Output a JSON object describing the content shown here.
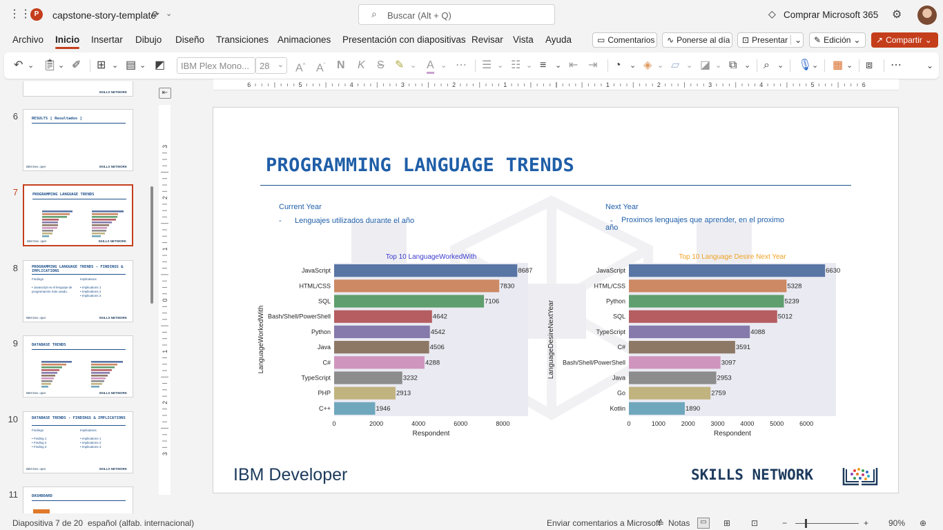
{
  "app": {
    "title": "capstone-story-template",
    "search_placeholder": "Buscar (Alt + Q)",
    "buy_label": "Comprar Microsoft 365"
  },
  "ribbon": {
    "tabs": [
      "Archivo",
      "Inicio",
      "Insertar",
      "Dibujo",
      "Diseño",
      "Transiciones",
      "Animaciones",
      "Presentación con diapositivas",
      "Revisar",
      "Vista",
      "Ayuda"
    ],
    "active_tab": "Inicio",
    "comments": "Comentarios",
    "catch_up": "Ponerse al día",
    "present": "Presentar",
    "edit_mode": "Edición",
    "share": "Compartir",
    "font_name": "IBM Plex Mono...",
    "font_size": "28"
  },
  "thumbnails": [
    {
      "num": "6",
      "title": "RESULTS [ Resultados ]"
    },
    {
      "num": "7",
      "title": "PROGRAMMING LANGUAGE TRENDS"
    },
    {
      "num": "8",
      "title": "PROGRAMMING LANGUAGE TRENDS - FINDINGS & IMPLICATIONS",
      "c1": "Findings",
      "c2": "Implications",
      "c1b": "• Javascript es el lenguaje de programación más usado.",
      "c2b": "• Implications 1\n• Implications 2\n• Implications 3"
    },
    {
      "num": "9",
      "title": "DATABASE TRENDS"
    },
    {
      "num": "10",
      "title": "DATABASE TRENDS - FINDINGS & IMPLICATIONS",
      "c1": "Findings",
      "c2": "Implications",
      "c1b": "• Finding 1\n• Finding 2\n• Finding 3",
      "c2b": "• Implications 1\n• Implications 2\n• Implications 3"
    },
    {
      "num": "11",
      "title": "DASHBOARD"
    }
  ],
  "thumb_footer": {
    "left": "IBM Dev. oper",
    "right": "SKILLS NETWORK"
  },
  "slide": {
    "title": "PROGRAMMING LANGUAGE TRENDS",
    "left_heading": "Current Year",
    "left_bullet": "Lenguajes utilizados durante el año",
    "right_heading": "Next Year",
    "right_bullet": "Proximos lenguajes que aprender, en el proximo año",
    "footer_left": "IBM Developer",
    "footer_right": "SKILLS NETWORK"
  },
  "chart_data": [
    {
      "type": "bar",
      "orientation": "horizontal",
      "title": "Top 10 LanguageWorkedWith",
      "title_color": "#3b3bd1",
      "xlabel": "Respondent",
      "ylabel": "LanguageWorkedWith",
      "categories": [
        "JavaScript",
        "HTML/CSS",
        "SQL",
        "Bash/Shell/PowerShell",
        "Python",
        "Java",
        "C#",
        "TypeScript",
        "PHP",
        "C++"
      ],
      "values": [
        8687,
        7830,
        7106,
        4642,
        4542,
        4506,
        4288,
        3232,
        2913,
        1946
      ],
      "xticks": [
        0,
        2000,
        4000,
        6000,
        8000
      ],
      "xlim": [
        0,
        9200
      ],
      "grid": false
    },
    {
      "type": "bar",
      "orientation": "horizontal",
      "title": "Top 10 Language Desire Next Year",
      "title_color": "#f0a020",
      "xlabel": "Respondent",
      "ylabel": "LanguageDesireNextYear",
      "categories": [
        "JavaScript",
        "HTML/CSS",
        "Python",
        "SQL",
        "TypeScript",
        "C#",
        "Bash/Shell/PowerShell",
        "Java",
        "Go",
        "Kotlin"
      ],
      "values": [
        6630,
        5328,
        5239,
        5012,
        4088,
        3591,
        3097,
        2953,
        2759,
        1890
      ],
      "xticks": [
        0,
        1000,
        2000,
        3000,
        4000,
        5000,
        6000
      ],
      "xlim": [
        0,
        7000
      ],
      "grid": false
    }
  ],
  "bar_colors": [
    "#5975a4",
    "#cc8963",
    "#5f9e6e",
    "#b55d60",
    "#857aab",
    "#8d7866",
    "#d095bf",
    "#8c8c8c",
    "#c1b37f",
    "#6fa8bc"
  ],
  "status": {
    "slide_info": "Diapositiva 7 de 20",
    "language": "español (alfab. internacional)",
    "feedback": "Enviar comentarios a Microsoft",
    "notes": "Notas",
    "zoom": "90%"
  }
}
